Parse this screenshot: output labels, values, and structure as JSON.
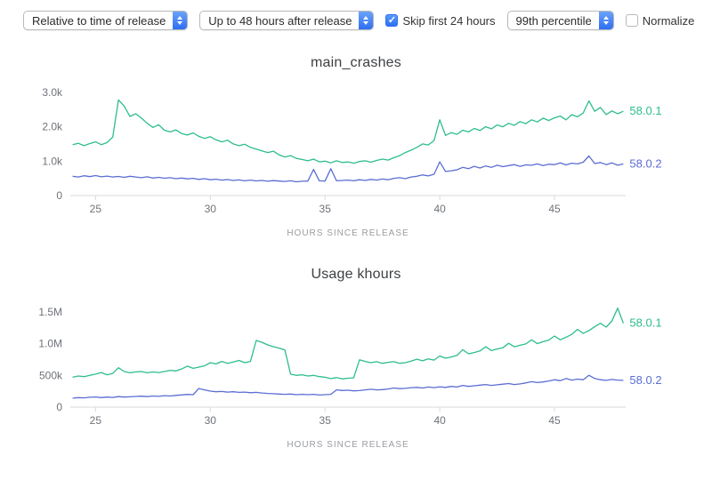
{
  "toolbar": {
    "time_basis_select": {
      "value": "Relative to time of release"
    },
    "window_select": {
      "value": "Up to 48 hours after release"
    },
    "skip_checkbox": {
      "label": "Skip first 24 hours",
      "checked": true
    },
    "percentile_select": {
      "value": "99th percentile"
    },
    "normalize_checkbox": {
      "label": "Normalize",
      "checked": false
    }
  },
  "colors": {
    "series_green": "#2dbd8d",
    "series_blue": "#5b6dd3",
    "axis_line": "#d8d8d8",
    "tick_text": "#6e7278",
    "axis_title_text": "#9a9ca1",
    "mac_accent_blue": "#2e6ef3"
  },
  "chart_data": [
    {
      "type": "line",
      "title": "main_crashes",
      "xlabel": "HOURS SINCE RELEASE",
      "x_start": 24,
      "x_step": 0.25,
      "xlim": [
        23.9,
        48.1
      ],
      "ylim": [
        0,
        3100
      ],
      "xticks": [
        25,
        30,
        35,
        40,
        45
      ],
      "yticks": [
        {
          "value": 0,
          "label": "0"
        },
        {
          "value": 1000,
          "label": "1.0k"
        },
        {
          "value": 2000,
          "label": "2.0k"
        },
        {
          "value": 3000,
          "label": "3.0k"
        }
      ],
      "grid": false,
      "legend_position": "right-of-line-end",
      "series": [
        {
          "name": "58.0.1",
          "color": "#2dbd8d",
          "values": [
            1480,
            1520,
            1450,
            1510,
            1560,
            1480,
            1540,
            1700,
            2780,
            2600,
            2300,
            2380,
            2250,
            2100,
            1980,
            2060,
            1900,
            1850,
            1910,
            1800,
            1760,
            1820,
            1720,
            1660,
            1710,
            1620,
            1560,
            1610,
            1500,
            1450,
            1490,
            1400,
            1350,
            1300,
            1250,
            1290,
            1180,
            1120,
            1160,
            1080,
            1050,
            1010,
            1060,
            980,
            1000,
            950,
            1010,
            960,
            980,
            940,
            990,
            1010,
            970,
            1020,
            1060,
            1030,
            1100,
            1160,
            1250,
            1320,
            1400,
            1500,
            1470,
            1600,
            2200,
            1750,
            1830,
            1780,
            1900,
            1850,
            1950,
            1890,
            2000,
            1940,
            2050,
            2000,
            2100,
            2040,
            2150,
            2090,
            2200,
            2140,
            2250,
            2180,
            2260,
            2310,
            2200,
            2350,
            2290,
            2400,
            2750,
            2450,
            2560,
            2350,
            2460,
            2380,
            2450
          ]
        },
        {
          "name": "58.0.2",
          "color": "#5b6dd3",
          "values": [
            560,
            540,
            575,
            550,
            580,
            545,
            565,
            540,
            555,
            530,
            560,
            540,
            520,
            545,
            510,
            530,
            505,
            520,
            490,
            510,
            485,
            500,
            470,
            490,
            460,
            475,
            450,
            465,
            440,
            455,
            430,
            450,
            425,
            440,
            415,
            435,
            420,
            410,
            430,
            400,
            415,
            420,
            760,
            430,
            420,
            780,
            430,
            440,
            450,
            430,
            460,
            440,
            470,
            450,
            480,
            460,
            500,
            520,
            490,
            540,
            560,
            600,
            570,
            620,
            980,
            700,
            720,
            750,
            820,
            780,
            850,
            800,
            860,
            820,
            880,
            840,
            870,
            900,
            850,
            890,
            880,
            920,
            870,
            910,
            900,
            950,
            890,
            940,
            920,
            970,
            1150,
            930,
            960,
            900,
            950,
            880,
            920
          ]
        }
      ]
    },
    {
      "type": "line",
      "title": "Usage khours",
      "xlabel": "HOURS SINCE RELEASE",
      "x_start": 24,
      "x_step": 0.25,
      "xlim": [
        23.9,
        48.1
      ],
      "ylim": [
        0,
        1680
      ],
      "xticks": [
        25,
        30,
        35,
        40,
        45
      ],
      "yticks": [
        {
          "value": 0,
          "label": "0"
        },
        {
          "value": 500,
          "label": "500k"
        },
        {
          "value": 1000,
          "label": "1.0M"
        },
        {
          "value": 1500,
          "label": "1.5M"
        }
      ],
      "grid": false,
      "legend_position": "right-of-line-end",
      "value_unit": "k",
      "series": [
        {
          "name": "58.0.1",
          "color": "#2dbd8d",
          "values": [
            470,
            490,
            480,
            500,
            520,
            545,
            510,
            530,
            620,
            560,
            540,
            555,
            560,
            540,
            555,
            545,
            560,
            580,
            570,
            600,
            645,
            610,
            630,
            650,
            700,
            680,
            720,
            690,
            710,
            735,
            700,
            720,
            1050,
            1020,
            980,
            950,
            930,
            900,
            520,
            500,
            510,
            490,
            500,
            480,
            470,
            450,
            465,
            445,
            455,
            460,
            745,
            720,
            700,
            715,
            690,
            705,
            715,
            690,
            700,
            725,
            755,
            730,
            760,
            740,
            805,
            770,
            790,
            815,
            905,
            840,
            860,
            885,
            950,
            890,
            915,
            935,
            1005,
            950,
            975,
            995,
            1060,
            1000,
            1030,
            1055,
            1120,
            1060,
            1100,
            1145,
            1225,
            1160,
            1205,
            1265,
            1320,
            1260,
            1355,
            1560,
            1320
          ]
        },
        {
          "name": "58.0.2",
          "color": "#5b6dd3",
          "values": [
            140,
            150,
            145,
            155,
            160,
            150,
            158,
            152,
            165,
            158,
            162,
            168,
            172,
            165,
            175,
            170,
            180,
            175,
            185,
            192,
            200,
            196,
            292,
            272,
            252,
            242,
            247,
            237,
            242,
            232,
            237,
            227,
            232,
            222,
            216,
            211,
            206,
            201,
            206,
            196,
            201,
            196,
            201,
            191,
            196,
            201,
            272,
            262,
            266,
            256,
            261,
            271,
            281,
            271,
            276,
            286,
            301,
            291,
            296,
            306,
            311,
            301,
            316,
            306,
            321,
            311,
            326,
            316,
            341,
            326,
            336,
            346,
            356,
            341,
            351,
            361,
            371,
            356,
            366,
            381,
            401,
            386,
            396,
            411,
            431,
            416,
            451,
            426,
            441,
            431,
            501,
            451,
            431,
            421,
            436,
            426,
            421
          ]
        }
      ]
    }
  ]
}
